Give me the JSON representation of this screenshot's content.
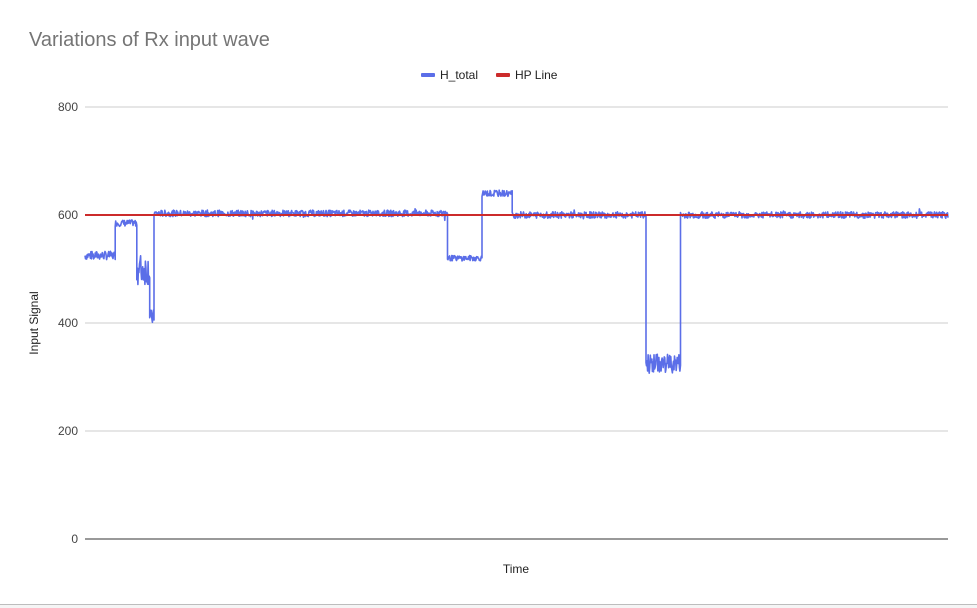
{
  "chart_data": {
    "type": "line",
    "title": "Variations of Rx input wave",
    "xlabel": "Time",
    "ylabel": "Input Signal",
    "ylim": [
      0,
      800
    ],
    "yticks": [
      0,
      200,
      400,
      600,
      800
    ],
    "legend_position": "top",
    "grid": true,
    "series": [
      {
        "name": "H_total",
        "color": "#5b6ee8",
        "segments": [
          {
            "x_start": 0,
            "x_end": 35,
            "level": 525,
            "noise": 8
          },
          {
            "x_start": 35,
            "x_end": 60,
            "level": 585,
            "noise": 6
          },
          {
            "x_start": 60,
            "x_end": 75,
            "level": 500,
            "noise": 30
          },
          {
            "x_start": 75,
            "x_end": 80,
            "level": 410,
            "noise": 15
          },
          {
            "x_start": 80,
            "x_end": 420,
            "level": 603,
            "noise": 6
          },
          {
            "x_start": 420,
            "x_end": 460,
            "level": 520,
            "noise": 5
          },
          {
            "x_start": 460,
            "x_end": 495,
            "level": 640,
            "noise": 6
          },
          {
            "x_start": 495,
            "x_end": 650,
            "level": 600,
            "noise": 6
          },
          {
            "x_start": 650,
            "x_end": 690,
            "level": 325,
            "noise": 18
          },
          {
            "x_start": 690,
            "x_end": 1000,
            "level": 600,
            "noise": 6
          }
        ],
        "x_range": [
          0,
          1000
        ]
      },
      {
        "name": "HP Line",
        "color": "#cc2b2b",
        "values": [
          600,
          600
        ]
      }
    ]
  }
}
